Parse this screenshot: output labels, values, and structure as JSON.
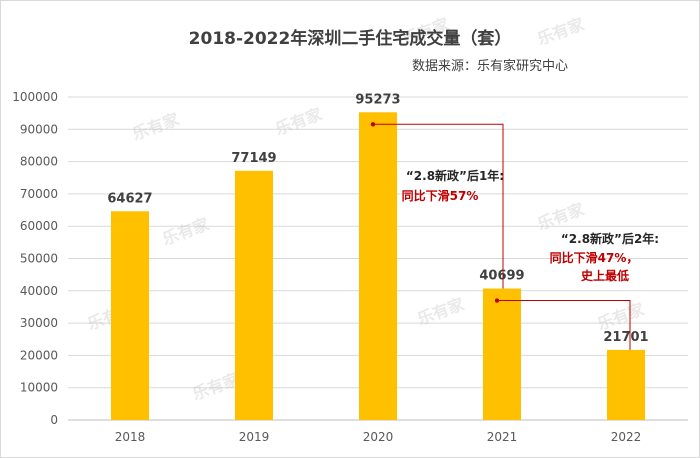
{
  "chart_data": {
    "type": "bar",
    "title": "2018-2022年深圳二手住宅成交量（套）",
    "subtitle": "数据来源：乐有家研究中心",
    "categories": [
      "2018",
      "2019",
      "2020",
      "2021",
      "2022"
    ],
    "values": [
      64627,
      77149,
      95273,
      40699,
      21701
    ],
    "value_labels": [
      "64627",
      "77149",
      "95273",
      "40699",
      "21701"
    ],
    "y_ticks": [
      "0",
      "10000",
      "20000",
      "30000",
      "40000",
      "50000",
      "60000",
      "70000",
      "80000",
      "90000",
      "100000"
    ],
    "ylim": [
      0,
      100000
    ],
    "xlabel": "",
    "ylabel": "",
    "grid": true,
    "legend": "none",
    "bar_color": "#FFC000",
    "annotations": [
      {
        "from": "2020",
        "to": "2021",
        "title": "“2.8新政”后1年:",
        "detail": "同比下滑57%"
      },
      {
        "from": "2021",
        "to": "2022",
        "title": "“2.8新政”后2年:",
        "detail": "同比下滑47%，",
        "detail2": "史上最低"
      }
    ],
    "watermark": "乐有家"
  },
  "colors": {
    "accent_red": "#C00000",
    "text_dark": "#404040",
    "axis_text": "#595959",
    "gridline": "#d9d9d9",
    "watermark": "#bfbfbf"
  }
}
